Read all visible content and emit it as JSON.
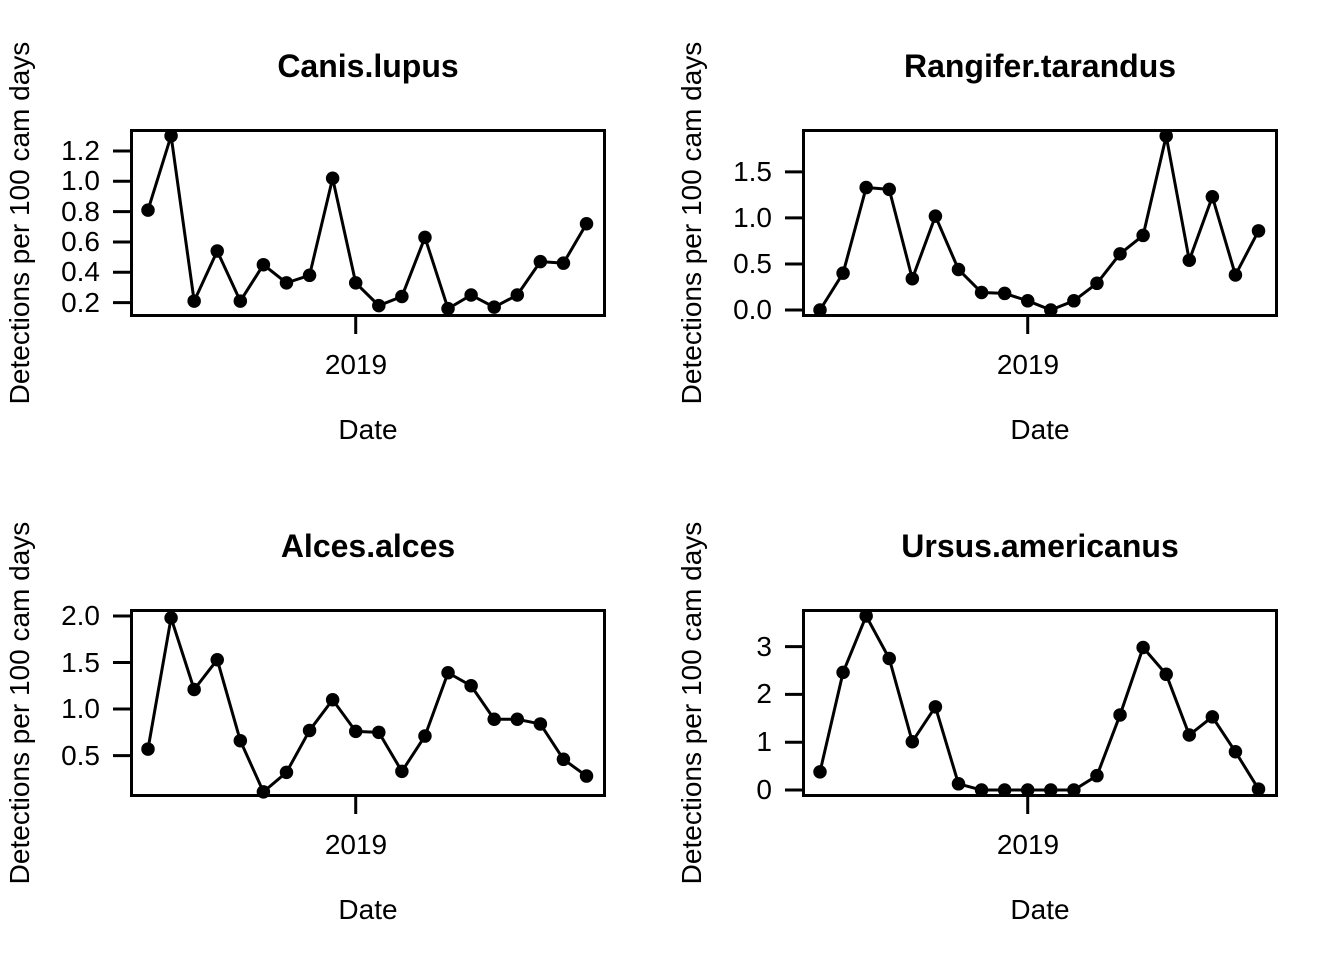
{
  "figure": {
    "background": "#ffffff",
    "foreground": "#000000",
    "layout": "2x2-grid",
    "marker": "filled-circle"
  },
  "chart_data": [
    {
      "type": "line",
      "title": "Canis.lupus",
      "xlabel": "Date",
      "ylabel": "Detections per 100 cam days",
      "x_tick_label": "2019",
      "x_tick_index": 9,
      "values": [
        0.81,
        1.3,
        0.21,
        0.54,
        0.21,
        0.45,
        0.33,
        0.38,
        1.02,
        0.33,
        0.18,
        0.24,
        0.63,
        0.16,
        0.25,
        0.17,
        0.25,
        0.47,
        0.46,
        0.72
      ],
      "ylim": [
        0.105,
        1.345
      ],
      "ytick_values": [
        0.2,
        0.4,
        0.6,
        0.8,
        1.0,
        1.2
      ],
      "ytick_labels": [
        "0.2",
        "0.4",
        "0.6",
        "0.8",
        "1.0",
        "1.2"
      ],
      "grid": false,
      "legend": "none",
      "line_color": "#000000",
      "point_color": "#000000"
    },
    {
      "type": "line",
      "title": "Rangifer.tarandus",
      "xlabel": "Date",
      "ylabel": "Detections per 100 cam days",
      "x_tick_label": "2019",
      "x_tick_index": 9,
      "values": [
        0.0,
        0.4,
        1.33,
        1.31,
        0.34,
        1.02,
        0.44,
        0.19,
        0.18,
        0.1,
        0.0,
        0.1,
        0.29,
        0.61,
        0.81,
        1.89,
        0.54,
        1.23,
        0.38,
        0.86
      ],
      "ylim": [
        -0.076,
        1.966
      ],
      "ytick_values": [
        0.0,
        0.5,
        1.0,
        1.5
      ],
      "ytick_labels": [
        "0.0",
        "0.5",
        "1.0",
        "1.5"
      ],
      "grid": false,
      "legend": "none",
      "line_color": "#000000",
      "point_color": "#000000"
    },
    {
      "type": "line",
      "title": "Alces.alces",
      "xlabel": "Date",
      "ylabel": "Detections per 100 cam days",
      "x_tick_label": "2019",
      "x_tick_index": 9,
      "values": [
        0.57,
        1.98,
        1.21,
        1.53,
        0.66,
        0.11,
        0.32,
        0.77,
        1.1,
        0.76,
        0.75,
        0.33,
        0.71,
        1.39,
        1.25,
        0.89,
        0.89,
        0.84,
        0.46,
        0.28
      ],
      "ylim": [
        0.055,
        2.075
      ],
      "ytick_values": [
        0.5,
        1.0,
        1.5,
        2.0
      ],
      "ytick_labels": [
        "0.5",
        "1.0",
        "1.5",
        "2.0"
      ],
      "grid": false,
      "legend": "none",
      "line_color": "#000000",
      "point_color": "#000000"
    },
    {
      "type": "line",
      "title": "Ursus.americanus",
      "xlabel": "Date",
      "ylabel": "Detections per 100 cam days",
      "x_tick_label": "2019",
      "x_tick_index": 9,
      "values": [
        0.38,
        2.46,
        3.64,
        2.75,
        1.01,
        1.74,
        0.13,
        0.0,
        0.0,
        0.0,
        0.0,
        0.0,
        0.3,
        1.57,
        2.98,
        2.42,
        1.15,
        1.53,
        0.8,
        0.02
      ],
      "ylim": [
        -0.146,
        3.786
      ],
      "ytick_values": [
        0,
        1,
        2,
        3
      ],
      "ytick_labels": [
        "0",
        "1",
        "2",
        "3"
      ],
      "grid": false,
      "legend": "none",
      "line_color": "#000000",
      "point_color": "#000000"
    }
  ]
}
